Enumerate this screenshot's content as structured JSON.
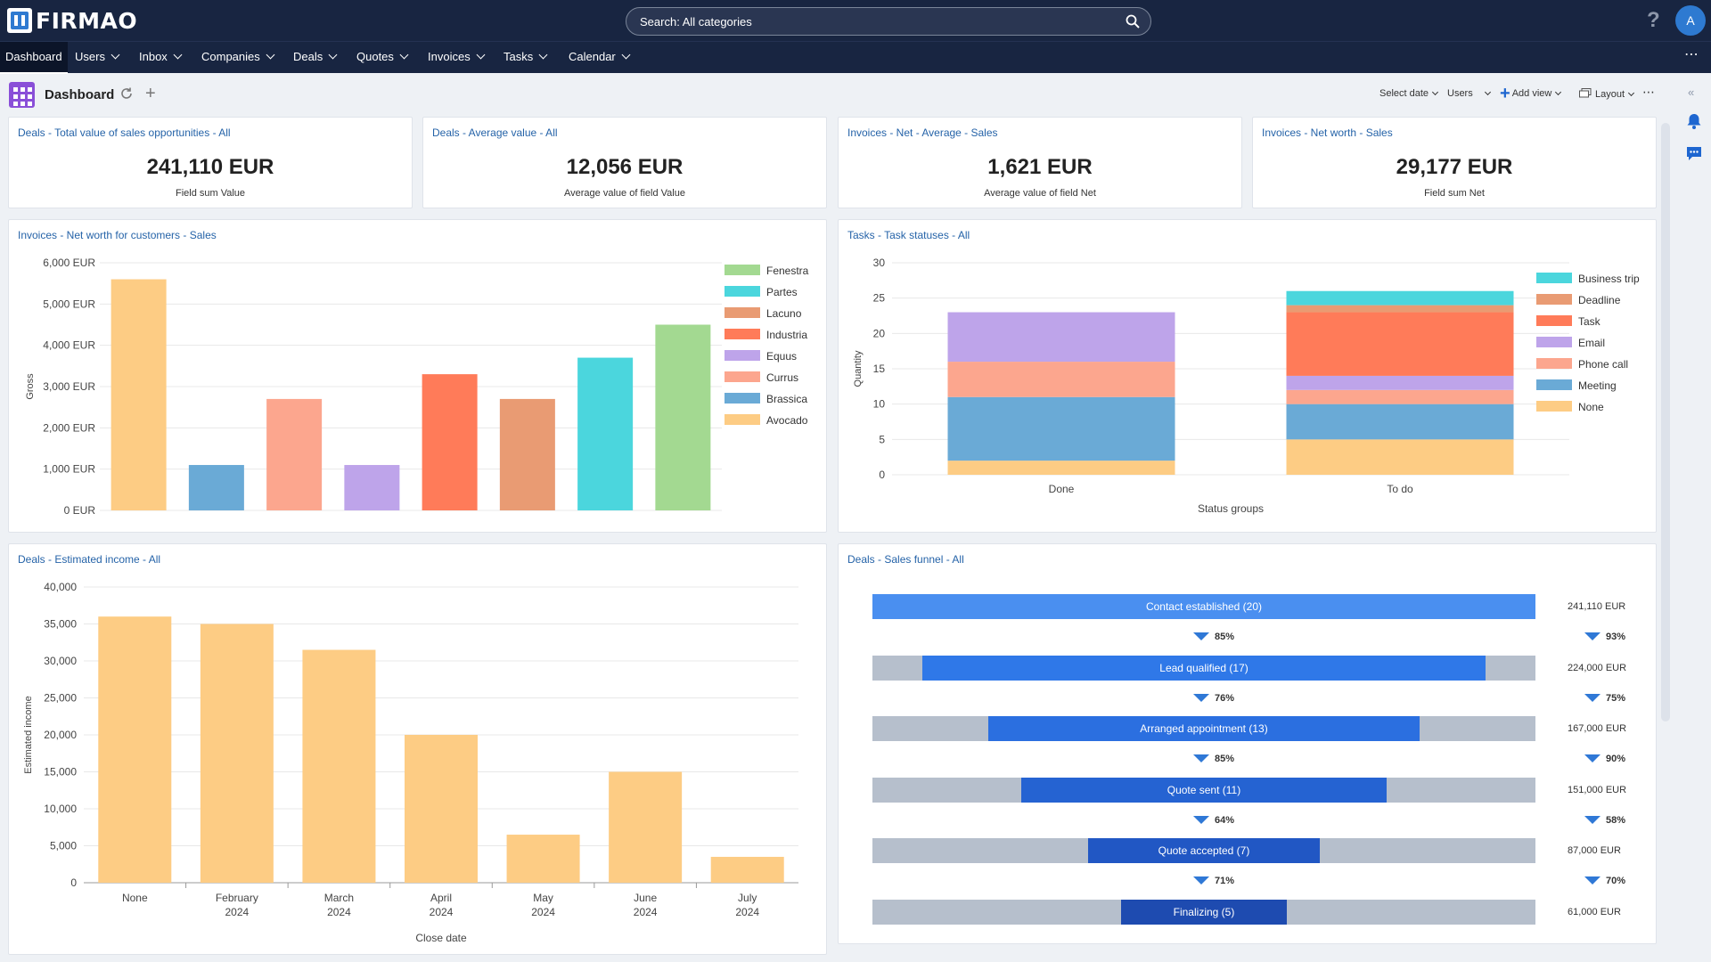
{
  "app": {
    "logo_text": "FIRMAO",
    "search_placeholder": "Search: All categories",
    "help": "?",
    "avatar": "A"
  },
  "nav": {
    "items": [
      "Dashboard",
      "Users",
      "Inbox",
      "Companies",
      "Deals",
      "Quotes",
      "Invoices",
      "Tasks",
      "Calendar"
    ],
    "more": "⋯"
  },
  "toolbar": {
    "title": "Dashboard",
    "select_date": "Select date",
    "users": "Users",
    "add_view": "Add view",
    "layout": "Layout",
    "more": "⋯"
  },
  "kpis": [
    {
      "title": "Deals - Total value of sales opportunities - All",
      "value": "241,110 EUR",
      "sub": "Field sum Value"
    },
    {
      "title": "Deals - Average value - All",
      "value": "12,056 EUR",
      "sub": "Average value of field Value"
    },
    {
      "title": "Invoices - Net - Average - Sales",
      "value": "1,621 EUR",
      "sub": "Average value of field Net"
    },
    {
      "title": "Invoices - Net worth - Sales",
      "value": "29,177 EUR",
      "sub": "Field sum Net"
    }
  ],
  "chart_data": [
    {
      "type": "bar",
      "title": "Invoices - Net worth for customers - Sales",
      "ylabel": "Gross",
      "ylim": [
        0,
        6000
      ],
      "yticks": [
        "0 EUR",
        "1,000 EUR",
        "2,000 EUR",
        "3,000 EUR",
        "4,000 EUR",
        "5,000 EUR",
        "6,000 EUR"
      ],
      "categories": [
        "Avocado",
        "Brassica",
        "Currus",
        "Equus",
        "Industria",
        "Lacuno",
        "Partes",
        "Fenestra"
      ],
      "values": [
        5600,
        1100,
        2700,
        1100,
        3300,
        2700,
        3700,
        4500
      ],
      "colors": [
        "#fdcc84",
        "#6aaad6",
        "#fca68e",
        "#bea4ea",
        "#ff7b59",
        "#e99b73",
        "#4bd6dd",
        "#a3d991"
      ],
      "legend": [
        "Fenestra",
        "Partes",
        "Lacuno",
        "Industria",
        "Equus",
        "Currus",
        "Brassica",
        "Avocado"
      ]
    },
    {
      "type": "bar",
      "stacked": true,
      "title": "Tasks - Task statuses - All",
      "xlabel": "Status groups",
      "ylabel": "Quantity",
      "ylim": [
        0,
        30
      ],
      "yticks": [
        "0",
        "5",
        "10",
        "15",
        "20",
        "25",
        "30"
      ],
      "categories": [
        "Done",
        "To do"
      ],
      "series": [
        {
          "name": "None",
          "color": "#fdcc84",
          "values": [
            2,
            5
          ]
        },
        {
          "name": "Meeting",
          "color": "#6aaad6",
          "values": [
            9,
            5
          ]
        },
        {
          "name": "Phone call",
          "color": "#fca68e",
          "values": [
            5,
            2
          ]
        },
        {
          "name": "Email",
          "color": "#bea4ea",
          "values": [
            7,
            2
          ]
        },
        {
          "name": "Task",
          "color": "#ff7b59",
          "values": [
            0,
            9
          ]
        },
        {
          "name": "Deadline",
          "color": "#e99b73",
          "values": [
            0,
            1
          ]
        },
        {
          "name": "Business trip",
          "color": "#4bd6dd",
          "values": [
            0,
            2
          ]
        }
      ],
      "legend": [
        "Business trip",
        "Deadline",
        "Task",
        "Email",
        "Phone call",
        "Meeting",
        "None"
      ]
    },
    {
      "type": "bar",
      "title": "Deals - Estimated income - All",
      "xlabel": "Close date",
      "ylabel": "Estimated income",
      "ylim": [
        0,
        40000
      ],
      "yticks": [
        "0",
        "5,000",
        "10,000",
        "15,000",
        "20,000",
        "25,000",
        "30,000",
        "35,000",
        "40,000"
      ],
      "categories": [
        [
          "None"
        ],
        [
          "February",
          "2024"
        ],
        [
          "March",
          "2024"
        ],
        [
          "April",
          "2024"
        ],
        [
          "May",
          "2024"
        ],
        [
          "June",
          "2024"
        ],
        [
          "July",
          "2024"
        ]
      ],
      "values": [
        36000,
        35000,
        31500,
        20000,
        6500,
        15000,
        3500
      ],
      "color": "#fdcc84"
    },
    {
      "type": "funnel",
      "title": "Deals - Sales funnel - All",
      "stages": [
        {
          "label": "Contact established (20)",
          "count": 20,
          "value": "241,110 EUR",
          "color": "#4a8ff0"
        },
        {
          "label": "Lead qualified (17)",
          "count": 17,
          "value": "224,000 EUR",
          "color": "#2f78e8"
        },
        {
          "label": "Arranged appointment (13)",
          "count": 13,
          "value": "167,000 EUR",
          "color": "#2b6fe0"
        },
        {
          "label": "Quote sent (11)",
          "count": 11,
          "value": "151,000 EUR",
          "color": "#2563d2"
        },
        {
          "label": "Quote accepted (7)",
          "count": 7,
          "value": "87,000 EUR",
          "color": "#2157c4"
        },
        {
          "label": "Finalizing (5)",
          "count": 5,
          "value": "61,000 EUR",
          "color": "#1e4bb0"
        }
      ],
      "count_conversions": [
        "85%",
        "76%",
        "85%",
        "64%",
        "71%"
      ],
      "value_conversions": [
        "93%",
        "75%",
        "90%",
        "58%",
        "70%"
      ]
    }
  ]
}
